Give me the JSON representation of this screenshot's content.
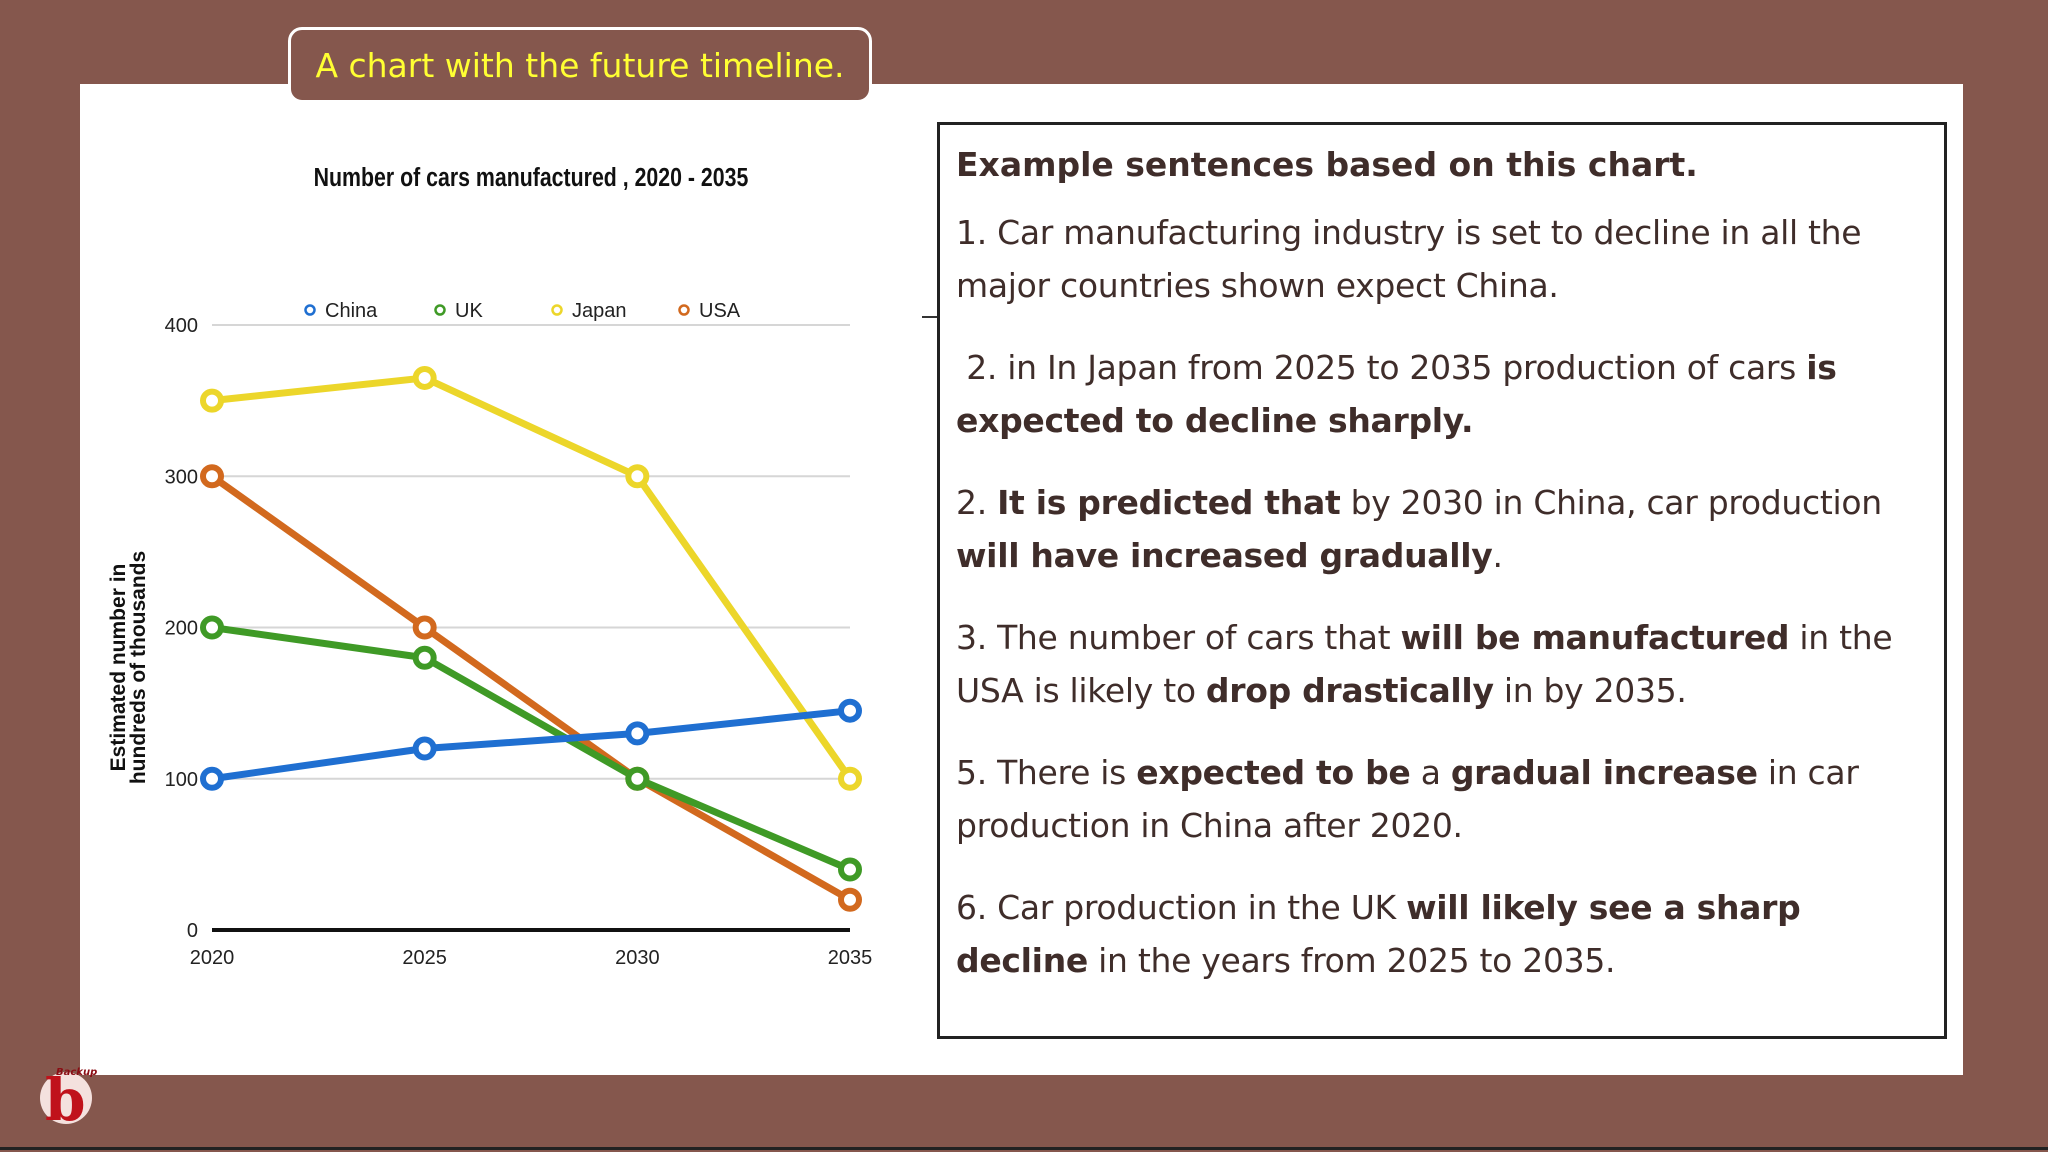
{
  "slide": {
    "title_tab": "A chart with the future timeline."
  },
  "chart_data": {
    "type": "line",
    "title": "Number of cars manufactured , 2020 - 2035",
    "xlabel": "",
    "ylabel": "Estimated number in hundreds of thousands",
    "ylabel_lines": [
      "Estimated number in",
      "hundreds of thousands"
    ],
    "categories": [
      "2020",
      "2025",
      "2030",
      "2035"
    ],
    "ylim": [
      0,
      400
    ],
    "yticks": [
      0,
      100,
      200,
      300,
      400
    ],
    "grid": true,
    "legend_position": "top",
    "series": [
      {
        "name": "China",
        "color": "#1f6fd1",
        "values": [
          100,
          120,
          130,
          145
        ]
      },
      {
        "name": "UK",
        "color": "#3f9a26",
        "values": [
          200,
          180,
          100,
          40
        ]
      },
      {
        "name": "Japan",
        "color": "#ecd62a",
        "values": [
          350,
          365,
          300,
          100
        ]
      },
      {
        "name": "USA",
        "color": "#d2691e",
        "values": [
          300,
          200,
          100,
          20
        ]
      }
    ]
  },
  "sentences": {
    "heading": "Example sentences based on this chart.",
    "items": [
      [
        {
          "t": "1. Car manufacturing industry is set to decline in all the major countries shown expect China.",
          "b": false
        }
      ],
      [
        {
          "t": " 2. in In Japan from 2025 to 2035 production of cars ",
          "b": false
        },
        {
          "t": "is expected to decline sharply.",
          "b": true
        }
      ],
      [
        {
          "t": "2. ",
          "b": false
        },
        {
          "t": "It is predicted that",
          "b": true
        },
        {
          "t": " by 2030 in China, car production ",
          "b": false
        },
        {
          "t": "will have increased gradually",
          "b": true
        },
        {
          "t": ".",
          "b": false
        }
      ],
      [
        {
          "t": "3. The number of cars that ",
          "b": false
        },
        {
          "t": "will be manufactured",
          "b": true
        },
        {
          "t": " in the USA is likely to ",
          "b": false
        },
        {
          "t": "drop drastically",
          "b": true
        },
        {
          "t": " in by 2035.",
          "b": false
        }
      ],
      [
        {
          "t": "5. There is ",
          "b": false
        },
        {
          "t": "expected to be",
          "b": true
        },
        {
          "t": " a ",
          "b": false
        },
        {
          "t": "gradual increase",
          "b": true
        },
        {
          "t": " in car production in China after 2020.",
          "b": false
        }
      ],
      [
        {
          "t": "6. Car production in the UK ",
          "b": false
        },
        {
          "t": "will likely see a sharp decline",
          "b": true
        },
        {
          "t": " in the years from 2025 to 2035.",
          "b": false
        }
      ]
    ]
  },
  "logo": {
    "letter": "b",
    "wordmark": "Backup"
  },
  "colors": {
    "background": "#85574d",
    "panel": "#ffffff",
    "tab_text": "#ffff33",
    "body_text": "#3f2d2a"
  }
}
